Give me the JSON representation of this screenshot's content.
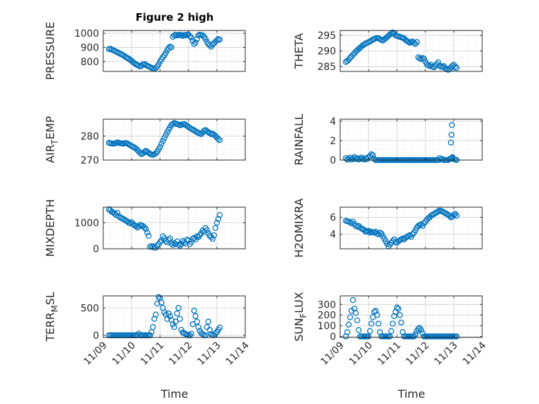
{
  "figure_title": "Figure 2 high",
  "x_tick_labels": [
    "11/09",
    "11/10",
    "11/11",
    "11/12",
    "11/13",
    "11/14"
  ],
  "x_label": "Time",
  "marker_color": "#0072BD",
  "chart_data": [
    {
      "type": "scatter",
      "name": "PRESSURE",
      "ylabel": "PRESSURE",
      "ylim": [
        730,
        1020
      ],
      "yticks": [
        800,
        900,
        1000
      ],
      "xlim": [
        0,
        5
      ],
      "x": [
        0.2,
        0.25,
        0.3,
        0.35,
        0.4,
        0.45,
        0.5,
        0.55,
        0.6,
        0.65,
        0.7,
        0.75,
        0.8,
        0.85,
        0.9,
        0.95,
        1.0,
        1.05,
        1.1,
        1.15,
        1.2,
        1.25,
        1.3,
        1.35,
        1.4,
        1.45,
        1.5,
        1.55,
        1.6,
        1.65,
        1.7,
        1.75,
        1.8,
        1.85,
        1.9,
        1.95,
        2.0,
        2.05,
        2.1,
        2.15,
        2.2,
        2.25,
        2.3,
        2.35,
        2.4,
        2.45,
        2.5,
        2.55,
        2.6,
        2.65,
        2.7,
        2.75,
        2.8,
        2.85,
        2.9,
        2.95,
        3.0,
        3.05,
        3.1,
        3.15,
        3.2,
        3.25,
        3.3,
        3.35,
        3.4,
        3.45,
        3.5,
        3.55,
        3.6,
        3.65,
        3.7,
        3.75,
        3.8,
        3.85,
        3.9,
        3.95,
        4.0,
        4.05,
        4.1
      ],
      "y": [
        888,
        890,
        885,
        880,
        875,
        870,
        865,
        860,
        855,
        850,
        845,
        838,
        830,
        825,
        820,
        812,
        805,
        795,
        788,
        780,
        775,
        770,
        765,
        770,
        780,
        782,
        775,
        770,
        765,
        760,
        755,
        750,
        748,
        755,
        765,
        780,
        800,
        815,
        830,
        845,
        860,
        880,
        895,
        905,
        900,
        975,
        985,
        990,
        985,
        988,
        990,
        985,
        982,
        988,
        985,
        990,
        992,
        980,
        970,
        945,
        925,
        935,
        960,
        985,
        990,
        988,
        985,
        975,
        960,
        940,
        925,
        915,
        905,
        920,
        930,
        940,
        950,
        960,
        955
      ]
    },
    {
      "type": "scatter",
      "name": "THETA",
      "ylabel": "THETA",
      "ylim": [
        283.5,
        296.5
      ],
      "yticks": [
        285,
        290,
        295
      ],
      "xlim": [
        0,
        5
      ],
      "x": [
        0.2,
        0.25,
        0.3,
        0.35,
        0.4,
        0.45,
        0.5,
        0.55,
        0.6,
        0.65,
        0.7,
        0.75,
        0.8,
        0.85,
        0.9,
        0.95,
        1.0,
        1.05,
        1.1,
        1.15,
        1.2,
        1.25,
        1.3,
        1.35,
        1.4,
        1.45,
        1.5,
        1.55,
        1.6,
        1.65,
        1.7,
        1.75,
        1.8,
        1.85,
        1.9,
        1.95,
        2.0,
        2.05,
        2.1,
        2.15,
        2.2,
        2.25,
        2.3,
        2.35,
        2.4,
        2.45,
        2.5,
        2.55,
        2.6,
        2.65,
        2.7,
        2.75,
        2.8,
        2.85,
        2.9,
        2.95,
        3.0,
        3.05,
        3.1,
        3.15,
        3.2,
        3.25,
        3.3,
        3.35,
        3.4,
        3.45,
        3.5,
        3.55,
        3.6,
        3.65,
        3.7,
        3.75,
        3.8,
        3.85,
        3.9,
        3.95,
        4.0,
        4.05,
        4.1
      ],
      "y": [
        286.5,
        286.8,
        287.2,
        287.8,
        288.3,
        288.8,
        289.2,
        289.8,
        290.2,
        290.6,
        291.0,
        291.4,
        291.8,
        292.1,
        292.4,
        292.6,
        292.8,
        293.0,
        293.3,
        293.6,
        293.8,
        294.0,
        294.1,
        294.0,
        293.8,
        293.5,
        293.3,
        293.6,
        294.0,
        294.4,
        294.8,
        295.2,
        295.5,
        295.9,
        295.5,
        295.0,
        294.8,
        294.6,
        294.5,
        294.3,
        294.2,
        294.0,
        293.5,
        293.2,
        292.9,
        292.6,
        292.8,
        293.0,
        292.5,
        292.2,
        292.8,
        288.0,
        287.6,
        287.4,
        287.8,
        287.5,
        286.6,
        285.8,
        285.4,
        285.2,
        285.6,
        285.0,
        284.8,
        285.2,
        285.8,
        286.4,
        285.4,
        285.0,
        284.9,
        285.2,
        284.5,
        284.3,
        284.0,
        284.2,
        284.8,
        285.3,
        285.6,
        285.0,
        284.6
      ]
    },
    {
      "type": "scatter",
      "name": "AIR_TEMP",
      "ylabel": "AIR_TEMP",
      "ylim": [
        270,
        287
      ],
      "yticks": [
        270,
        280
      ],
      "xlim": [
        0,
        5
      ],
      "x": [
        0.2,
        0.25,
        0.3,
        0.35,
        0.4,
        0.45,
        0.5,
        0.55,
        0.6,
        0.65,
        0.7,
        0.75,
        0.8,
        0.85,
        0.9,
        0.95,
        1.0,
        1.05,
        1.1,
        1.15,
        1.2,
        1.25,
        1.3,
        1.35,
        1.4,
        1.45,
        1.5,
        1.55,
        1.6,
        1.65,
        1.7,
        1.75,
        1.8,
        1.85,
        1.9,
        1.95,
        2.0,
        2.05,
        2.1,
        2.15,
        2.2,
        2.25,
        2.3,
        2.35,
        2.4,
        2.45,
        2.5,
        2.55,
        2.6,
        2.65,
        2.7,
        2.75,
        2.8,
        2.85,
        2.9,
        2.95,
        3.0,
        3.05,
        3.1,
        3.15,
        3.2,
        3.25,
        3.3,
        3.35,
        3.4,
        3.45,
        3.5,
        3.55,
        3.6,
        3.65,
        3.7,
        3.75,
        3.8,
        3.85,
        3.9,
        3.95,
        4.0,
        4.05,
        4.1
      ],
      "y": [
        277.2,
        277.0,
        276.9,
        276.8,
        276.9,
        277.1,
        277.3,
        277.2,
        277.0,
        276.9,
        276.8,
        277.0,
        277.1,
        276.9,
        276.5,
        276.2,
        275.8,
        275.5,
        275.2,
        274.8,
        274.2,
        273.6,
        273.0,
        272.5,
        272.8,
        273.4,
        273.8,
        273.5,
        273.0,
        272.6,
        272.3,
        272.2,
        272.4,
        272.8,
        273.5,
        274.5,
        275.5,
        276.8,
        278.0,
        279.2,
        280.4,
        281.5,
        282.6,
        283.6,
        284.6,
        285.0,
        285.4,
        285.2,
        285.0,
        284.8,
        284.5,
        284.6,
        284.9,
        285.0,
        284.7,
        284.2,
        283.8,
        283.4,
        283.0,
        282.7,
        282.4,
        282.0,
        281.6,
        281.3,
        281.0,
        280.8,
        281.5,
        282.2,
        282.5,
        282.0,
        281.6,
        281.2,
        280.8,
        281.0,
        280.5,
        280.0,
        279.4,
        278.8,
        278.3
      ]
    },
    {
      "type": "scatter",
      "name": "RAINFALL",
      "ylabel": "RAINFALL",
      "ylim": [
        0,
        4.2
      ],
      "yticks": [
        0,
        2,
        4
      ],
      "xlim": [
        0,
        5
      ],
      "x": [
        0.2,
        0.25,
        0.3,
        0.35,
        0.4,
        0.45,
        0.5,
        0.55,
        0.6,
        0.65,
        0.7,
        0.75,
        0.8,
        0.85,
        0.9,
        0.95,
        1.0,
        1.05,
        1.1,
        1.15,
        1.2,
        1.25,
        1.3,
        1.35,
        1.4,
        1.45,
        1.5,
        1.55,
        1.6,
        1.65,
        1.7,
        1.75,
        1.8,
        1.85,
        1.9,
        1.95,
        2.0,
        2.05,
        2.1,
        2.15,
        2.2,
        2.25,
        2.3,
        2.35,
        2.4,
        2.45,
        2.5,
        2.55,
        2.6,
        2.65,
        2.7,
        2.75,
        2.8,
        2.85,
        2.9,
        2.95,
        3.0,
        3.05,
        3.1,
        3.15,
        3.2,
        3.25,
        3.3,
        3.35,
        3.4,
        3.45,
        3.5,
        3.55,
        3.6,
        3.65,
        3.7,
        3.75,
        3.8,
        3.85,
        3.9,
        3.95,
        4.0,
        4.05,
        4.1,
        3.9,
        3.92,
        3.93,
        3.95
      ],
      "y": [
        0.2,
        0.05,
        0.1,
        0.25,
        0.05,
        0.15,
        0.3,
        0.1,
        0.2,
        0.05,
        0.15,
        0.25,
        0.1,
        0.05,
        0.2,
        0.1,
        0.3,
        0.4,
        0.6,
        0.5,
        0.1,
        0,
        0,
        0,
        0,
        0,
        0,
        0,
        0,
        0,
        0,
        0,
        0,
        0,
        0,
        0,
        0,
        0,
        0,
        0,
        0,
        0,
        0,
        0,
        0,
        0,
        0,
        0,
        0,
        0,
        0,
        0,
        0,
        0,
        0,
        0,
        0,
        0,
        0,
        0,
        0,
        0,
        0,
        0,
        0,
        0,
        0.2,
        0.05,
        0.1,
        0,
        0,
        0,
        0,
        0.1,
        0.15,
        0.2,
        0.1,
        0.05,
        0,
        1.8,
        2.6,
        3.6,
        0.3
      ]
    },
    {
      "type": "scatter",
      "name": "MIXDEPTH",
      "ylabel": "MIXDEPTH",
      "ylim": [
        0,
        1600
      ],
      "yticks": [
        0,
        1000
      ],
      "xlim": [
        0,
        5
      ],
      "x": [
        0.2,
        0.25,
        0.3,
        0.35,
        0.4,
        0.45,
        0.5,
        0.55,
        0.6,
        0.65,
        0.7,
        0.75,
        0.8,
        0.85,
        0.9,
        0.95,
        1.0,
        1.05,
        1.1,
        1.15,
        1.2,
        1.25,
        1.3,
        1.35,
        1.4,
        1.45,
        1.5,
        1.55,
        1.6,
        1.65,
        1.7,
        1.75,
        1.8,
        1.85,
        1.9,
        1.95,
        2.0,
        2.05,
        2.1,
        2.15,
        2.2,
        2.25,
        2.3,
        2.35,
        2.4,
        2.45,
        2.5,
        2.55,
        2.6,
        2.65,
        2.7,
        2.75,
        2.8,
        2.85,
        2.9,
        2.95,
        3.0,
        3.05,
        3.1,
        3.15,
        3.2,
        3.25,
        3.3,
        3.35,
        3.4,
        3.45,
        3.5,
        3.55,
        3.6,
        3.65,
        3.7,
        3.75,
        3.8,
        3.85,
        3.9,
        3.95,
        4.0,
        4.05,
        4.1
      ],
      "y": [
        1520,
        1480,
        1420,
        1400,
        1350,
        1300,
        1380,
        1250,
        1200,
        1180,
        1150,
        1120,
        1080,
        1050,
        1000,
        980,
        1020,
        950,
        900,
        880,
        820,
        850,
        920,
        900,
        870,
        820,
        760,
        620,
        500,
        80,
        100,
        60,
        90,
        40,
        120,
        180,
        260,
        320,
        480,
        400,
        300,
        250,
        340,
        400,
        200,
        150,
        220,
        180,
        280,
        160,
        120,
        180,
        300,
        250,
        200,
        350,
        320,
        180,
        260,
        380,
        420,
        360,
        480,
        450,
        520,
        600,
        700,
        650,
        800,
        720,
        600,
        500,
        450,
        380,
        520,
        800,
        1000,
        1150,
        1300
      ]
    },
    {
      "type": "scatter",
      "name": "H2OMIXRA",
      "ylabel": "H2OMIXRA",
      "ylim": [
        2.3,
        7.2
      ],
      "yticks": [
        4,
        6
      ],
      "xlim": [
        0,
        5
      ],
      "x": [
        0.2,
        0.25,
        0.3,
        0.35,
        0.4,
        0.45,
        0.5,
        0.55,
        0.6,
        0.65,
        0.7,
        0.75,
        0.8,
        0.85,
        0.9,
        0.95,
        1.0,
        1.05,
        1.1,
        1.15,
        1.2,
        1.25,
        1.3,
        1.35,
        1.4,
        1.45,
        1.5,
        1.55,
        1.6,
        1.65,
        1.7,
        1.75,
        1.8,
        1.85,
        1.9,
        1.95,
        2.0,
        2.05,
        2.1,
        2.15,
        2.2,
        2.25,
        2.3,
        2.35,
        2.4,
        2.45,
        2.5,
        2.55,
        2.6,
        2.65,
        2.7,
        2.75,
        2.8,
        2.85,
        2.9,
        2.95,
        3.0,
        3.05,
        3.1,
        3.15,
        3.2,
        3.25,
        3.3,
        3.35,
        3.4,
        3.45,
        3.5,
        3.55,
        3.6,
        3.65,
        3.7,
        3.75,
        3.8,
        3.85,
        3.9,
        3.95,
        4.0,
        4.05,
        4.1
      ],
      "y": [
        5.6,
        5.55,
        5.5,
        5.4,
        5.3,
        5.5,
        5.2,
        5.0,
        4.9,
        5.0,
        4.8,
        4.7,
        4.6,
        4.5,
        4.3,
        4.35,
        4.4,
        4.2,
        4.3,
        4.25,
        4.2,
        4.3,
        4.1,
        4.0,
        4.2,
        4.1,
        3.8,
        3.5,
        3.2,
        2.9,
        2.6,
        2.8,
        3.0,
        3.2,
        3.4,
        3.1,
        3.0,
        3.2,
        3.3,
        3.4,
        3.5,
        3.4,
        3.6,
        3.7,
        3.8,
        3.9,
        3.7,
        4.0,
        4.2,
        4.5,
        4.8,
        5.0,
        5.1,
        5.2,
        5.0,
        5.3,
        5.5,
        5.7,
        5.9,
        6.0,
        6.2,
        6.3,
        6.4,
        6.5,
        6.6,
        6.7,
        6.8,
        6.75,
        6.7,
        6.6,
        6.5,
        6.4,
        6.3,
        6.2,
        6.0,
        6.1,
        6.3,
        6.4,
        6.2
      ]
    },
    {
      "type": "scatter",
      "name": "TERR_MSL",
      "ylabel": "TERR_MSL",
      "ylim": [
        -40,
        720
      ],
      "yticks": [
        0,
        500
      ],
      "xlim": [
        0,
        5
      ],
      "x": [
        0.2,
        0.25,
        0.3,
        0.35,
        0.4,
        0.45,
        0.5,
        0.55,
        0.6,
        0.65,
        0.7,
        0.75,
        0.8,
        0.85,
        0.9,
        0.95,
        1.0,
        1.05,
        1.1,
        1.15,
        1.2,
        1.25,
        1.3,
        1.35,
        1.4,
        1.45,
        1.5,
        1.55,
        1.6,
        1.65,
        1.7,
        1.75,
        1.8,
        1.85,
        1.9,
        1.95,
        2.0,
        2.05,
        2.1,
        2.15,
        2.2,
        2.25,
        2.3,
        2.35,
        2.4,
        2.45,
        2.5,
        2.55,
        2.6,
        2.65,
        2.7,
        2.75,
        2.8,
        2.85,
        2.9,
        2.95,
        3.0,
        3.05,
        3.1,
        3.15,
        3.2,
        3.25,
        3.3,
        3.35,
        3.4,
        3.45,
        3.5,
        3.55,
        3.6,
        3.65,
        3.7,
        3.75,
        3.8,
        3.85,
        3.9,
        3.95,
        4.0,
        4.05,
        4.1
      ],
      "y": [
        0,
        0,
        0,
        0,
        0,
        0,
        0,
        0,
        0,
        0,
        0,
        0,
        0,
        0,
        0,
        0,
        0,
        0,
        0,
        0,
        0,
        30,
        0,
        0,
        0,
        0,
        0,
        0,
        0,
        0,
        60,
        150,
        300,
        380,
        580,
        700,
        680,
        600,
        500,
        420,
        380,
        300,
        400,
        350,
        280,
        200,
        150,
        250,
        400,
        500,
        300,
        100,
        50,
        40,
        20,
        10,
        0,
        0,
        30,
        200,
        450,
        350,
        250,
        150,
        80,
        40,
        20,
        0,
        0,
        150,
        250,
        100,
        20,
        10,
        0,
        30,
        60,
        100,
        140
      ]
    },
    {
      "type": "scatter",
      "name": "SUN_FLUX",
      "ylabel": "SUN_FLUX",
      "ylim": [
        -10,
        380
      ],
      "yticks": [
        0,
        100,
        200,
        300
      ],
      "xlim": [
        0,
        5
      ],
      "x": [
        0.2,
        0.25,
        0.3,
        0.35,
        0.4,
        0.45,
        0.5,
        0.55,
        0.6,
        0.65,
        0.7,
        0.75,
        0.8,
        0.85,
        0.9,
        0.95,
        1.0,
        1.05,
        1.1,
        1.15,
        1.2,
        1.25,
        1.3,
        1.35,
        1.4,
        1.45,
        1.5,
        1.55,
        1.6,
        1.65,
        1.7,
        1.75,
        1.8,
        1.85,
        1.9,
        1.95,
        2.0,
        2.05,
        2.1,
        2.15,
        2.2,
        2.25,
        2.3,
        2.35,
        2.4,
        2.45,
        2.5,
        2.55,
        2.6,
        2.65,
        2.7,
        2.75,
        2.8,
        2.85,
        2.9,
        2.95,
        3.0,
        3.05,
        3.1,
        3.15,
        3.2,
        3.25,
        3.3,
        3.35,
        3.4,
        3.45,
        3.5,
        3.55,
        3.6,
        3.65,
        3.7,
        3.75,
        3.8,
        3.85,
        3.9,
        3.95,
        4.0,
        4.05,
        4.1
      ],
      "y": [
        0,
        40,
        110,
        180,
        240,
        340,
        260,
        220,
        150,
        60,
        0,
        0,
        0,
        0,
        0,
        0,
        0,
        50,
        120,
        180,
        230,
        240,
        200,
        120,
        40,
        0,
        0,
        0,
        0,
        0,
        0,
        0,
        50,
        120,
        190,
        230,
        270,
        260,
        200,
        130,
        40,
        0,
        0,
        0,
        0,
        0,
        0,
        0,
        0,
        20,
        50,
        70,
        80,
        60,
        30,
        0,
        0,
        0,
        0,
        0,
        0,
        0,
        0,
        0,
        0,
        0,
        0,
        0,
        0,
        0,
        0,
        0,
        0,
        0,
        0,
        0,
        0,
        0,
        0
      ]
    }
  ]
}
